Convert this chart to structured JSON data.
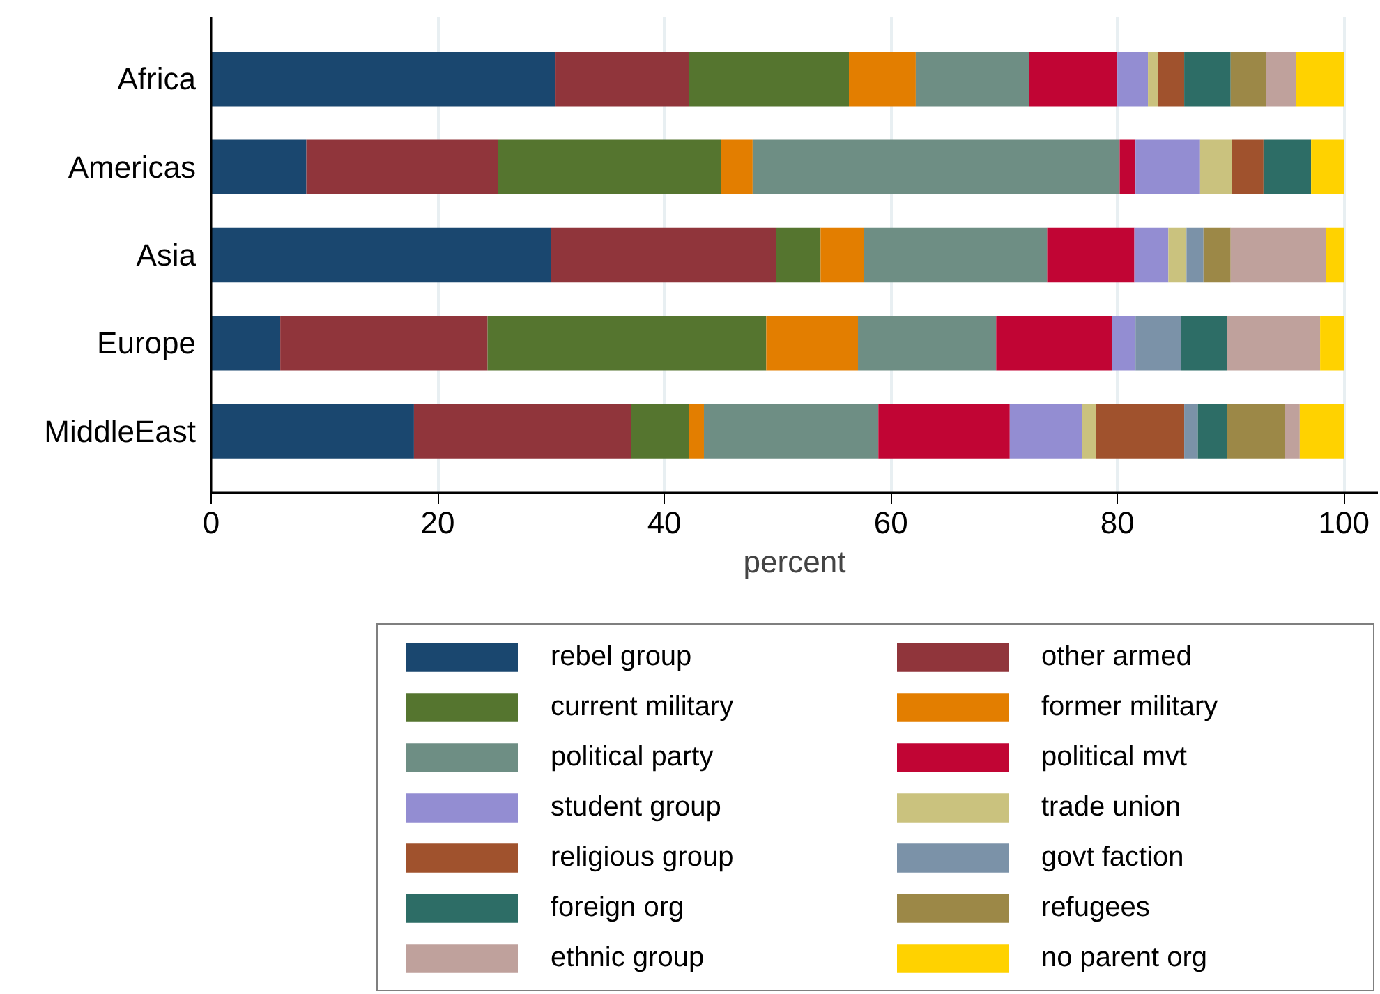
{
  "chart_data": {
    "type": "bar",
    "orientation": "horizontal",
    "stacked": true,
    "xlabel": "percent",
    "categories": [
      "Africa",
      "Americas",
      "Asia",
      "Europe",
      "MiddleEast"
    ],
    "xlim": [
      0,
      103
    ],
    "xticks": [
      0,
      20,
      40,
      60,
      80,
      100
    ],
    "grid": "x",
    "legend": "bottom",
    "series": [
      {
        "name": "rebel group",
        "color": "#1a476f",
        "values": [
          30.4,
          8.4,
          30.0,
          6.1,
          17.9
        ]
      },
      {
        "name": "other armed",
        "color": "#90353b",
        "values": [
          11.8,
          16.9,
          19.9,
          18.3,
          19.2
        ]
      },
      {
        "name": "current military",
        "color": "#55752f",
        "values": [
          14.1,
          19.7,
          3.9,
          24.6,
          5.1
        ]
      },
      {
        "name": "former military",
        "color": "#e37e00",
        "values": [
          5.9,
          2.8,
          3.8,
          8.1,
          1.3
        ]
      },
      {
        "name": "political party",
        "color": "#6e8e84",
        "values": [
          10.0,
          32.4,
          16.2,
          12.2,
          15.4
        ]
      },
      {
        "name": "political mvt",
        "color": "#c10534",
        "values": [
          7.8,
          1.4,
          7.7,
          10.2,
          11.6
        ]
      },
      {
        "name": "student group",
        "color": "#938dd2",
        "values": [
          2.7,
          5.7,
          3.0,
          2.1,
          6.4
        ]
      },
      {
        "name": "trade union",
        "color": "#cac27e",
        "values": [
          0.9,
          2.8,
          1.6,
          0,
          1.2
        ]
      },
      {
        "name": "religious group",
        "color": "#a0522d",
        "values": [
          2.3,
          2.8,
          0,
          0,
          7.8
        ]
      },
      {
        "name": "govt faction",
        "color": "#7b92a8",
        "values": [
          0,
          0,
          1.5,
          4.0,
          1.2
        ]
      },
      {
        "name": "foreign org",
        "color": "#2d6d66",
        "values": [
          4.1,
          4.2,
          0,
          4.1,
          2.6
        ]
      },
      {
        "name": "refugees",
        "color": "#9c8847",
        "values": [
          3.1,
          0,
          2.4,
          0,
          5.1
        ]
      },
      {
        "name": "ethnic group",
        "color": "#bfa19c",
        "values": [
          2.7,
          0,
          8.4,
          8.2,
          1.3
        ]
      },
      {
        "name": "no parent org",
        "color": "#ffd200",
        "values": [
          4.2,
          2.9,
          1.6,
          2.1,
          3.9
        ]
      }
    ]
  }
}
